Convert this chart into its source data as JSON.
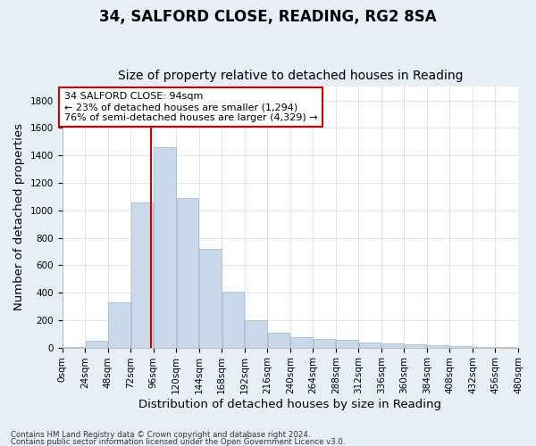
{
  "title1": "34, SALFORD CLOSE, READING, RG2 8SA",
  "title2": "Size of property relative to detached houses in Reading",
  "xlabel": "Distribution of detached houses by size in Reading",
  "ylabel": "Number of detached properties",
  "bar_color": "#c9d9ea",
  "bar_edge_color": "#9ab5cc",
  "bin_edges": [
    0,
    24,
    48,
    72,
    96,
    120,
    144,
    168,
    192,
    216,
    240,
    264,
    288,
    312,
    336,
    360,
    384,
    408,
    432,
    456,
    480
  ],
  "bar_heights": [
    5,
    50,
    330,
    1060,
    1460,
    1090,
    720,
    410,
    200,
    110,
    75,
    60,
    55,
    35,
    30,
    25,
    20,
    10,
    5,
    2
  ],
  "property_size": 94,
  "annotation_text": "34 SALFORD CLOSE: 94sqm\n← 23% of detached houses are smaller (1,294)\n76% of semi-detached houses are larger (4,329) →",
  "annotation_box_color": "#ffffff",
  "annotation_box_edge": "#cc0000",
  "vline_color": "#cc0000",
  "ylim": [
    0,
    1900
  ],
  "yticks": [
    0,
    200,
    400,
    600,
    800,
    1000,
    1200,
    1400,
    1600,
    1800
  ],
  "footer1": "Contains HM Land Registry data © Crown copyright and database right 2024.",
  "footer2": "Contains public sector information licensed under the Open Government Licence v3.0.",
  "outer_bg": "#e8eef5",
  "plot_bg": "#ffffff",
  "grid_color": "#dde5ee",
  "title1_fontsize": 12,
  "title2_fontsize": 10,
  "tick_fontsize": 7.5,
  "label_fontsize": 9.5
}
